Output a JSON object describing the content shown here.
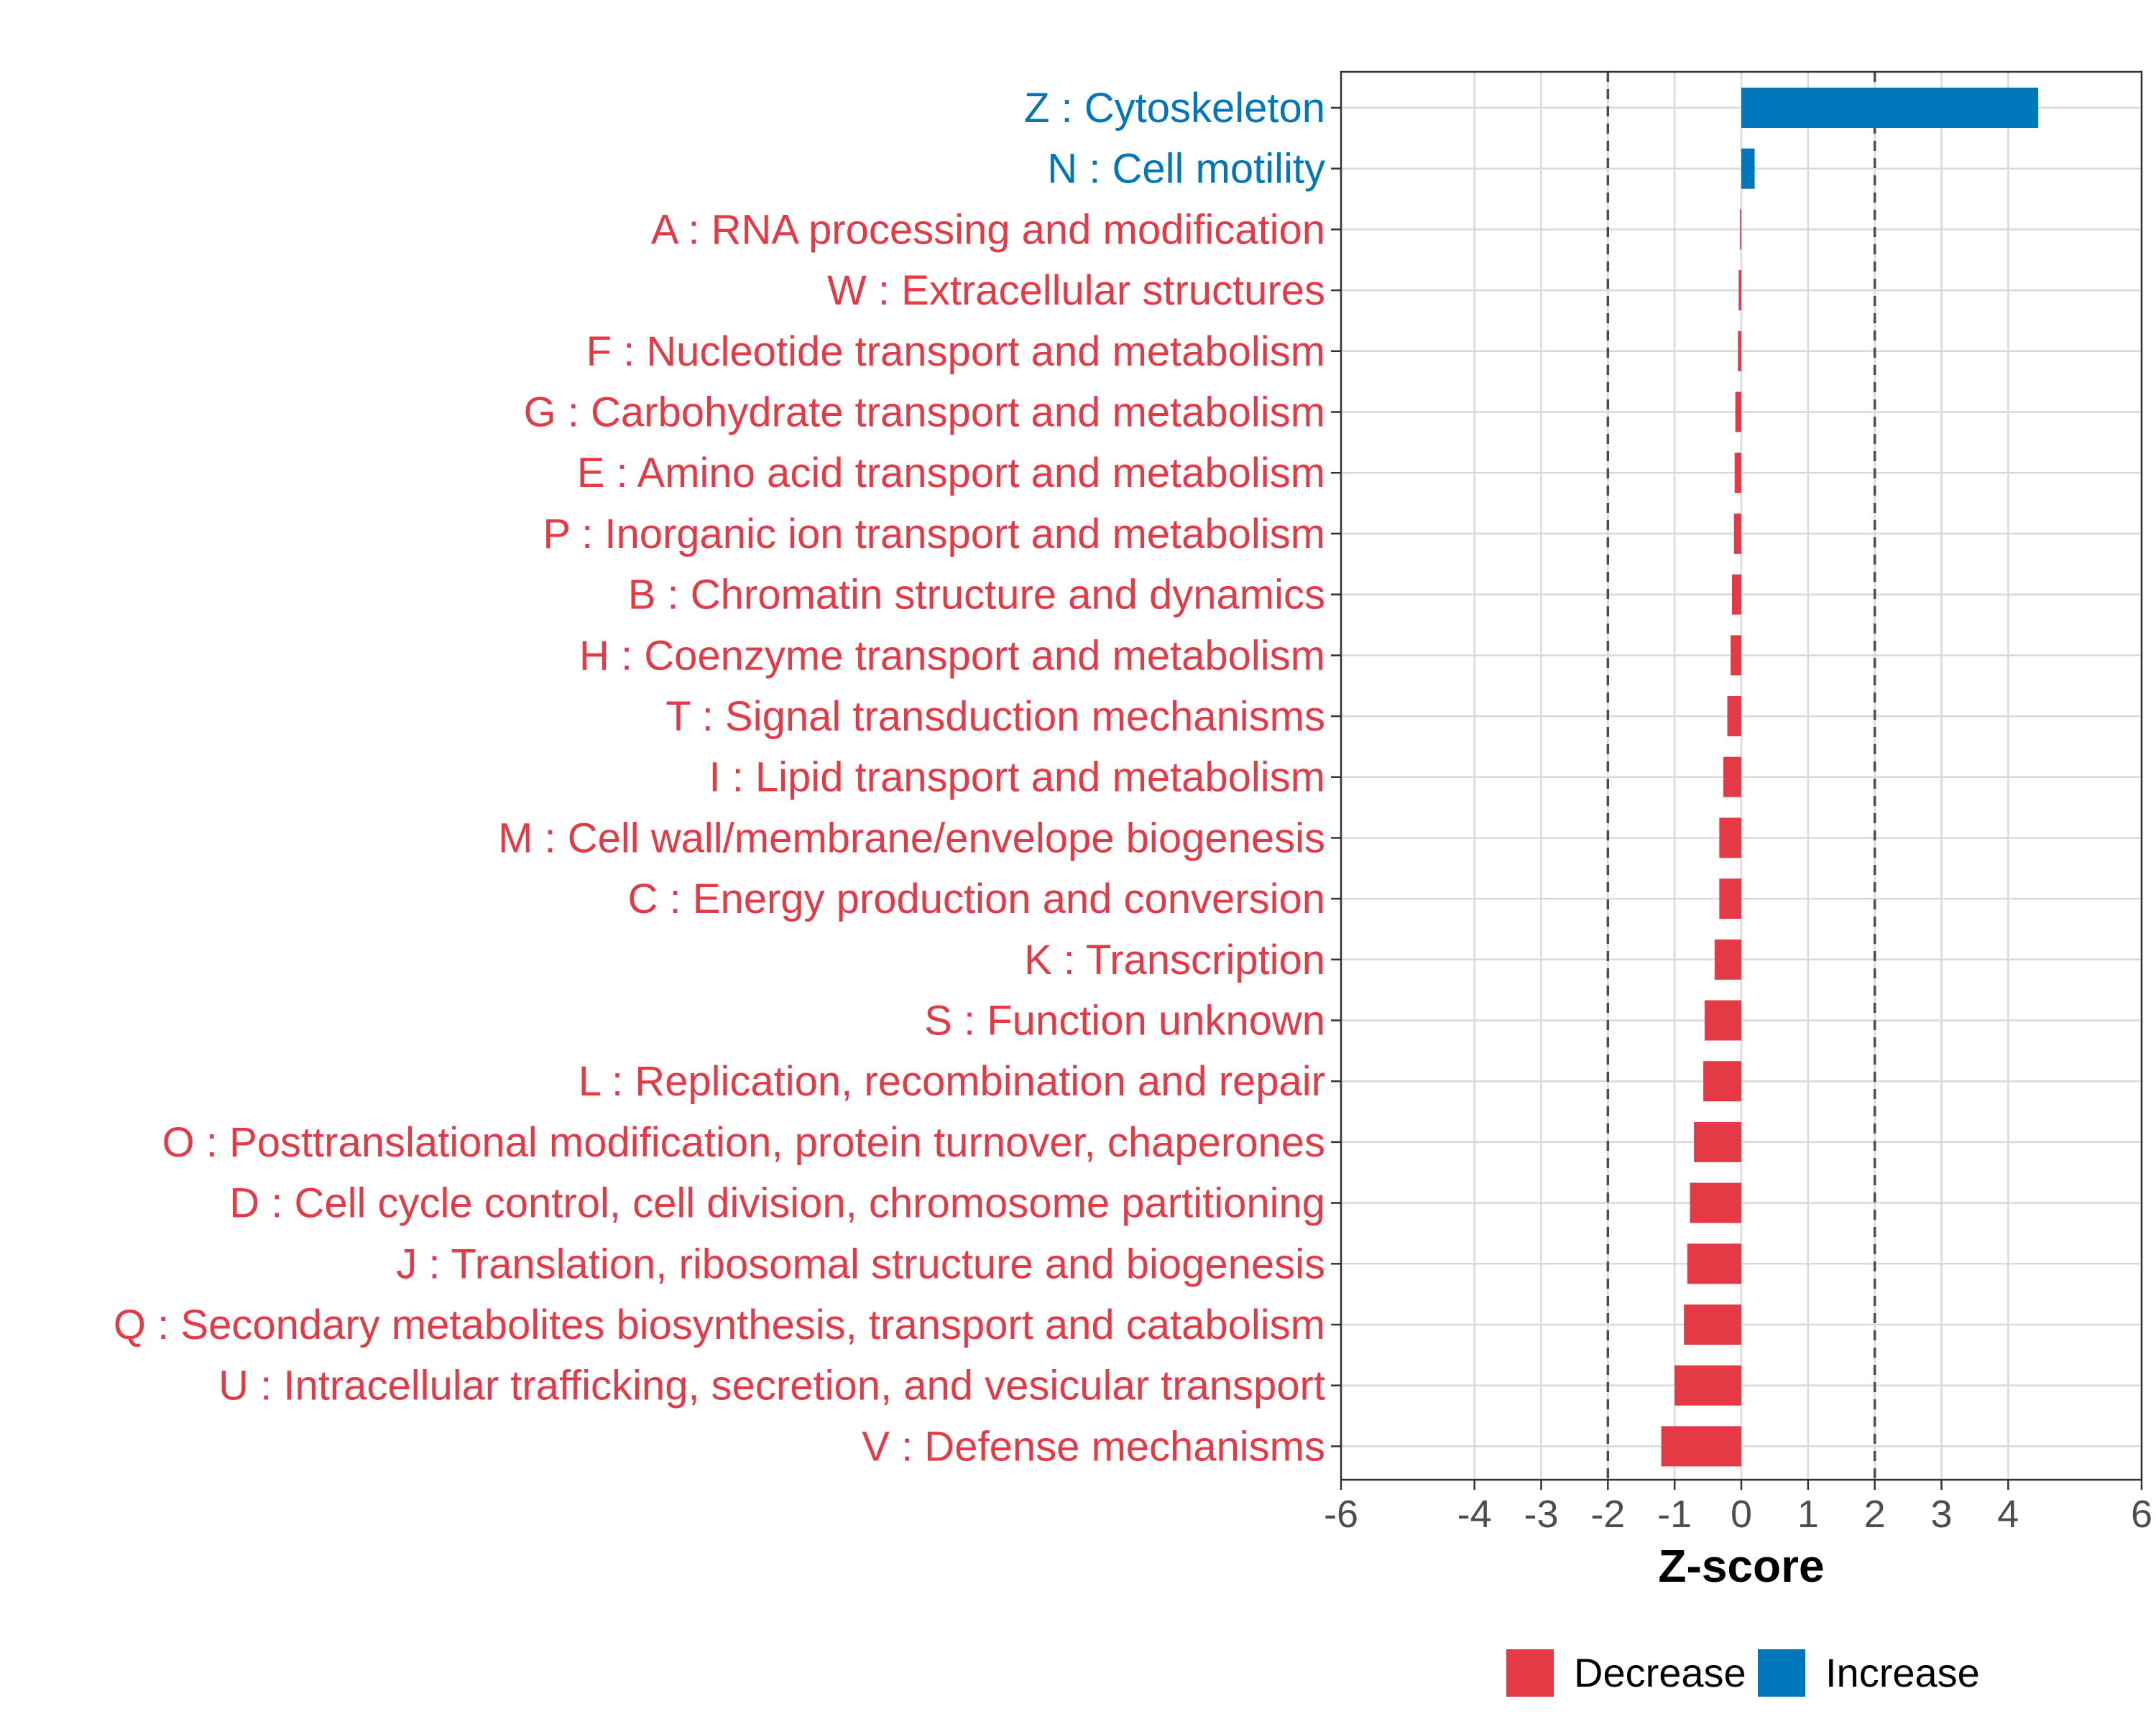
{
  "chart_data": {
    "type": "bar",
    "orientation": "horizontal",
    "xlabel": "Z-score",
    "xlim": [
      -6,
      6
    ],
    "xticks": [
      -6,
      -4,
      -3,
      -2,
      -1,
      0,
      1,
      2,
      3,
      4,
      6
    ],
    "xtick_labels": [
      "-6",
      "-4",
      "-3",
      "-2",
      "-1",
      "0",
      "1",
      "2",
      "3",
      "4",
      "6"
    ],
    "reference_lines": [
      -2,
      2
    ],
    "grid": true,
    "colors": {
      "Decrease": "#E63946",
      "Increase": "#0077BB"
    },
    "legend": {
      "position": "bottom",
      "items": [
        {
          "label": "Decrease",
          "color": "#E63946"
        },
        {
          "label": "Increase",
          "color": "#0077BB"
        }
      ]
    },
    "categories": [
      "Z : Cytoskeleton",
      "N : Cell motility",
      "A : RNA processing and modification",
      "W : Extracellular structures",
      "F : Nucleotide transport and metabolism",
      "G : Carbohydrate transport and metabolism",
      "E : Amino acid transport and metabolism",
      "P : Inorganic ion transport and metabolism",
      "B : Chromatin structure and dynamics",
      "H : Coenzyme transport and metabolism",
      "T : Signal transduction mechanisms",
      "I : Lipid transport and metabolism",
      "M : Cell wall/membrane/envelope biogenesis",
      "C : Energy production and conversion",
      "K : Transcription",
      "S : Function unknown",
      "L : Replication, recombination and repair",
      "O : Posttranslational modification, protein turnover, chaperones",
      "D : Cell cycle control, cell division, chromosome partitioning",
      "J : Translation, ribosomal structure and biogenesis",
      "Q : Secondary metabolites biosynthesis, transport and catabolism",
      "U : Intracellular trafficking, secretion, and vesicular transport",
      "V : Defense mechanisms"
    ],
    "values": [
      4.45,
      0.2,
      -0.02,
      -0.04,
      -0.05,
      -0.09,
      -0.1,
      -0.11,
      -0.14,
      -0.16,
      -0.21,
      -0.27,
      -0.33,
      -0.33,
      -0.4,
      -0.55,
      -0.57,
      -0.71,
      -0.77,
      -0.81,
      -0.86,
      -1.0,
      -1.2
    ],
    "groups": [
      "Increase",
      "Increase",
      "Decrease",
      "Decrease",
      "Decrease",
      "Decrease",
      "Decrease",
      "Decrease",
      "Decrease",
      "Decrease",
      "Decrease",
      "Decrease",
      "Decrease",
      "Decrease",
      "Decrease",
      "Decrease",
      "Decrease",
      "Decrease",
      "Decrease",
      "Decrease",
      "Decrease",
      "Decrease",
      "Decrease"
    ]
  }
}
